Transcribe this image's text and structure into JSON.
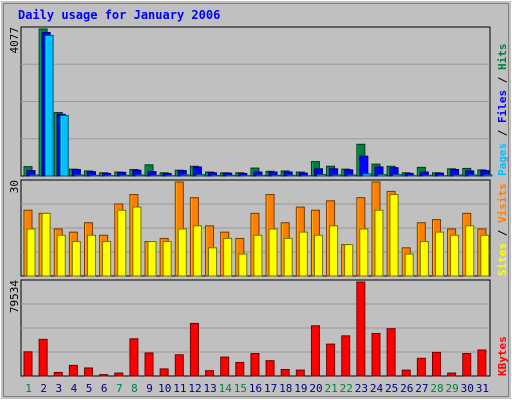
{
  "chart_data": {
    "type": "bar",
    "title": "Daily usage for January 2006",
    "categories": [
      "1",
      "2",
      "3",
      "4",
      "5",
      "6",
      "7",
      "8",
      "9",
      "10",
      "11",
      "12",
      "13",
      "14",
      "15",
      "16",
      "17",
      "18",
      "19",
      "20",
      "21",
      "22",
      "23",
      "24",
      "25",
      "26",
      "27",
      "28",
      "29",
      "30",
      "31"
    ],
    "weekend_days": [
      "1",
      "7",
      "8",
      "14",
      "15",
      "21",
      "22",
      "28",
      "29"
    ],
    "panels": [
      {
        "name": "hits-files-pages",
        "max_label": "4077",
        "ymax": 4077,
        "label_parts": [
          "Pages",
          "Files",
          "Hits"
        ],
        "series": [
          {
            "name": "Hits",
            "color": "#008040",
            "values": [
              260,
              4077,
              1760,
              190,
              140,
              90,
              110,
              180,
              310,
              90,
              160,
              270,
              110,
              90,
              90,
              220,
              130,
              140,
              110,
              400,
              270,
              190,
              880,
              330,
              270,
              90,
              240,
              90,
              200,
              210,
              170
            ]
          },
          {
            "name": "Files",
            "color": "#0000ff",
            "values": [
              150,
              3980,
              1710,
              180,
              120,
              70,
              100,
              160,
              120,
              70,
              150,
              250,
              90,
              80,
              70,
              110,
              110,
              110,
              80,
              200,
              200,
              170,
              550,
              250,
              230,
              70,
              110,
              80,
              180,
              140,
              150
            ]
          },
          {
            "name": "Pages",
            "color": "#00c0ff",
            "values": [
              30,
              3900,
              1680,
              30,
              20,
              10,
              20,
              30,
              20,
              10,
              30,
              40,
              20,
              20,
              10,
              20,
              20,
              20,
              10,
              40,
              30,
              30,
              60,
              40,
              40,
              10,
              20,
              10,
              30,
              30,
              30
            ]
          }
        ]
      },
      {
        "name": "visits-sites",
        "max_label": "30",
        "ymax": 30,
        "label_parts": [
          "Sites",
          "Visits"
        ],
        "series": [
          {
            "name": "Visits",
            "color": "#ff8000",
            "values": [
              21,
              20,
              15,
              14,
              17,
              13,
              23,
              26,
              11,
              12,
              30,
              25,
              16,
              14,
              12,
              20,
              26,
              17,
              22,
              21,
              24,
              10,
              25,
              30,
              27,
              9,
              17,
              18,
              15,
              20,
              15
            ]
          },
          {
            "name": "Sites",
            "color": "#ffff00",
            "values": [
              15,
              20,
              13,
              11,
              13,
              11,
              21,
              22,
              11,
              11,
              15,
              16,
              9,
              12,
              7,
              13,
              15,
              12,
              14,
              13,
              16,
              10,
              15,
              21,
              26,
              7,
              11,
              14,
              13,
              16,
              13
            ]
          }
        ]
      },
      {
        "name": "kbytes",
        "max_label": "79534",
        "ymax": 79534,
        "label_parts": [
          "KBytes"
        ],
        "series": [
          {
            "name": "KBytes",
            "color": "#ff0000",
            "values": [
              20500,
              31000,
              3000,
              9000,
              6800,
              1200,
              2500,
              31500,
              19500,
              6000,
              18000,
              44500,
              4500,
              16000,
              11500,
              19000,
              13000,
              5500,
              5000,
              42500,
              27000,
              34000,
              79534,
              36000,
              40000,
              5000,
              15000,
              20000,
              2500,
              19000,
              22000
            ]
          }
        ]
      }
    ],
    "colors": {
      "background": "#c0c0c0",
      "title": "#0000ff",
      "weekday_label": "#000080",
      "weekend_label": "#008040"
    }
  }
}
